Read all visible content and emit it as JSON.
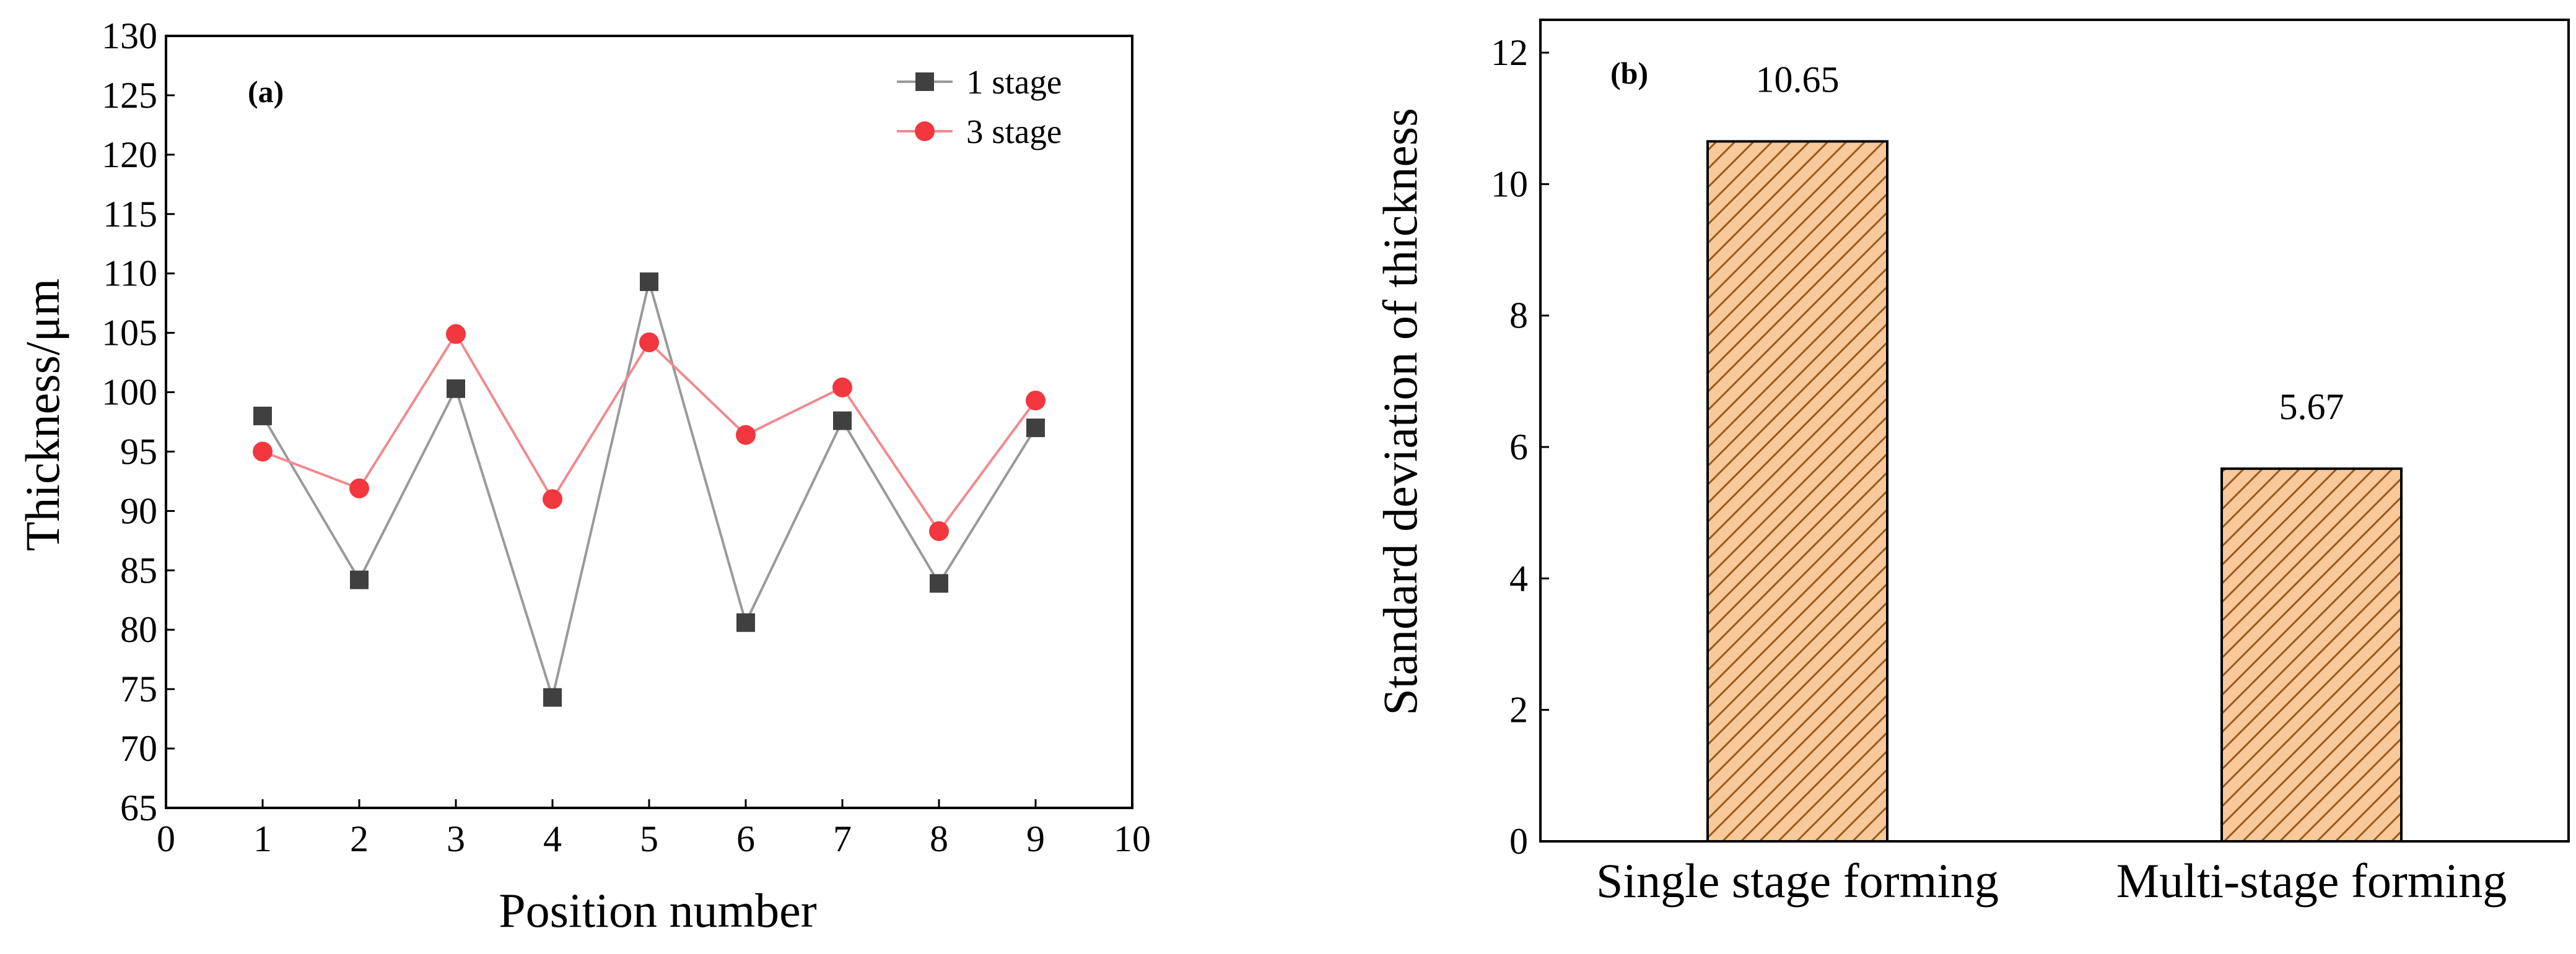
{
  "chart_data": [
    {
      "type": "line",
      "panel_label": "(a)",
      "xlabel": "Position number",
      "ylabel": "Thickness/μm",
      "xlim": [
        0,
        10
      ],
      "ylim": [
        65,
        130
      ],
      "x_ticks": [
        0,
        1,
        2,
        3,
        4,
        5,
        6,
        7,
        8,
        9,
        10
      ],
      "y_ticks": [
        65,
        70,
        75,
        80,
        85,
        90,
        95,
        100,
        105,
        110,
        115,
        120,
        125,
        130
      ],
      "grid": false,
      "legend_position": "top-right",
      "x": [
        1,
        2,
        3,
        4,
        5,
        6,
        7,
        8,
        9
      ],
      "series": [
        {
          "name": "1 stage",
          "marker": "square",
          "color": "#404040",
          "line_color": "#9a9a9a",
          "values": [
            98.0,
            84.2,
            100.3,
            74.3,
            109.3,
            80.6,
            97.6,
            83.9,
            97.0
          ]
        },
        {
          "name": "3 stage",
          "marker": "circle",
          "color": "#f2373f",
          "line_color": "#f08a8e",
          "values": [
            95.0,
            91.9,
            104.9,
            91.0,
            104.2,
            96.4,
            100.4,
            88.3,
            99.3
          ]
        }
      ]
    },
    {
      "type": "bar",
      "panel_label": "(b)",
      "xlabel": "",
      "ylabel": "Standard deviation of thickness",
      "ylim": [
        0,
        12.5
      ],
      "y_ticks": [
        0,
        2,
        4,
        6,
        8,
        10,
        12
      ],
      "grid": false,
      "categories": [
        "Single stage forming",
        "Multi-stage forming"
      ],
      "values": [
        10.65,
        5.67
      ],
      "value_labels": [
        "10.65",
        "5.67"
      ],
      "bar_fill": "#f9c99b",
      "bar_hatch_color": "#9a5a1e",
      "bar_edge": "#000000"
    }
  ]
}
